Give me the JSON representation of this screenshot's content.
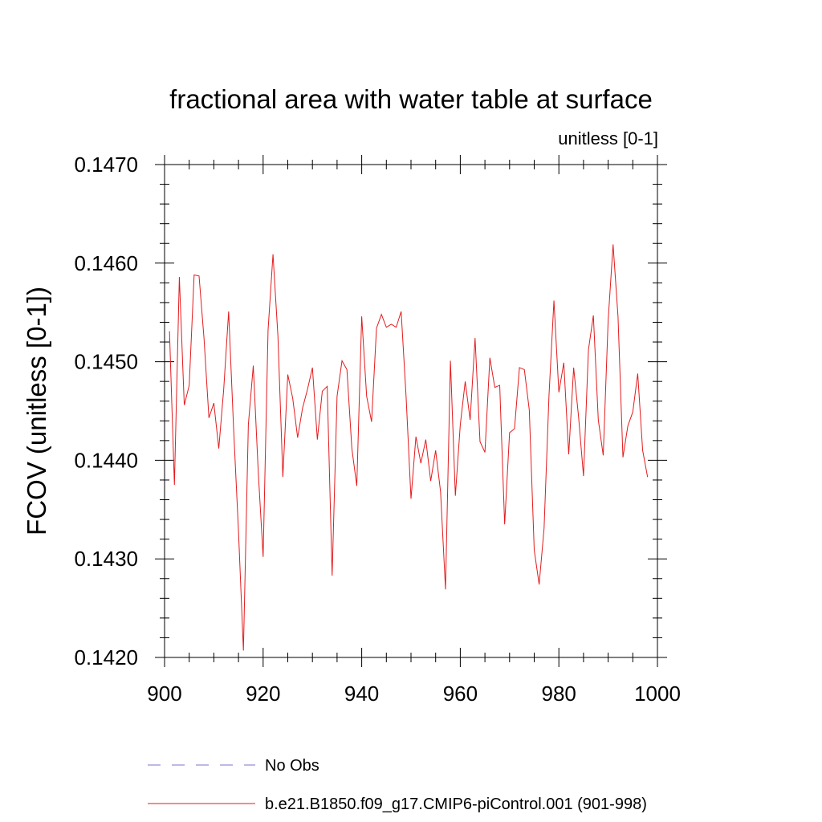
{
  "chart_data": {
    "type": "line",
    "title": "fractional area with water table at surface",
    "subtitle": "unitless [0-1]",
    "xlabel": "",
    "ylabel": "FCOV  (unitless [0-1])",
    "xlim": [
      900,
      1000
    ],
    "ylim": [
      0.142,
      0.147
    ],
    "x_ticks": [
      "900",
      "920",
      "940",
      "960",
      "980",
      "1000"
    ],
    "y_ticks": [
      "0.1420",
      "0.1430",
      "0.1440",
      "0.1450",
      "0.1460",
      "0.1470"
    ],
    "grid": false,
    "legend_placement": "bottom-left, below plot",
    "series": [
      {
        "name": "No Obs",
        "style": "dashed",
        "color": "#7b73c9",
        "x": [],
        "values": []
      },
      {
        "name": "b.e21.B1850.f09_g17.CMIP6-piControl.001 (901-998)",
        "style": "solid",
        "color": "#e41a1c",
        "x": [
          901,
          902,
          903,
          904,
          905,
          906,
          907,
          908,
          909,
          910,
          911,
          912,
          913,
          914,
          915,
          916,
          917,
          918,
          919,
          920,
          921,
          922,
          923,
          924,
          925,
          926,
          927,
          928,
          929,
          930,
          931,
          932,
          933,
          934,
          935,
          936,
          937,
          938,
          939,
          940,
          941,
          942,
          943,
          944,
          945,
          946,
          947,
          948,
          949,
          950,
          951,
          952,
          953,
          954,
          955,
          956,
          957,
          958,
          959,
          960,
          961,
          962,
          963,
          964,
          965,
          966,
          967,
          968,
          969,
          970,
          971,
          972,
          973,
          974,
          975,
          976,
          977,
          978,
          979,
          980,
          981,
          982,
          983,
          984,
          985,
          986,
          987,
          988,
          989,
          990,
          991,
          992,
          993,
          994,
          995,
          996,
          997,
          998
        ],
        "values": [
          0.14531,
          0.14375,
          0.14586,
          0.14456,
          0.14476,
          0.14588,
          0.14587,
          0.14524,
          0.14443,
          0.14458,
          0.14412,
          0.14472,
          0.14551,
          0.14433,
          0.14328,
          0.14207,
          0.14436,
          0.14496,
          0.14389,
          0.14302,
          0.14532,
          0.14609,
          0.14526,
          0.14383,
          0.14487,
          0.14463,
          0.14423,
          0.14453,
          0.14472,
          0.14494,
          0.14421,
          0.1447,
          0.14475,
          0.14283,
          0.14465,
          0.14501,
          0.14492,
          0.14412,
          0.14374,
          0.14546,
          0.14465,
          0.14439,
          0.14534,
          0.14548,
          0.14535,
          0.14538,
          0.14535,
          0.14551,
          0.14465,
          0.14361,
          0.14424,
          0.14397,
          0.14421,
          0.14379,
          0.1441,
          0.14368,
          0.14269,
          0.14501,
          0.14364,
          0.14436,
          0.1448,
          0.14441,
          0.14524,
          0.14419,
          0.14408,
          0.14504,
          0.14474,
          0.14476,
          0.14335,
          0.14428,
          0.14432,
          0.14494,
          0.14492,
          0.14451,
          0.14309,
          0.14274,
          0.14331,
          0.14466,
          0.14562,
          0.14469,
          0.14499,
          0.14406,
          0.14494,
          0.14444,
          0.14384,
          0.14512,
          0.14547,
          0.14441,
          0.14405,
          0.14542,
          0.14619,
          0.14546,
          0.14403,
          0.14435,
          0.14449,
          0.14488,
          0.1441,
          0.14383
        ]
      }
    ]
  }
}
